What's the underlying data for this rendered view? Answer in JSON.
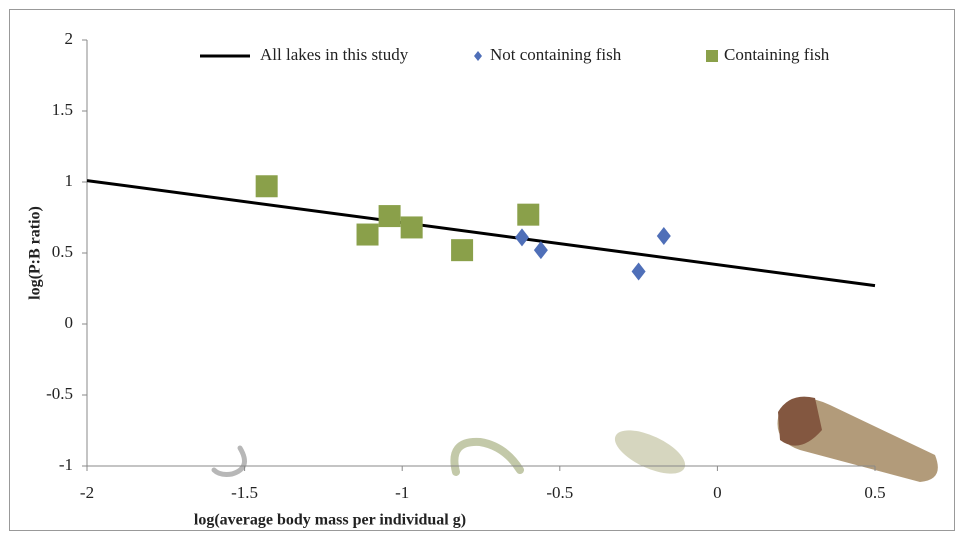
{
  "chart_data": {
    "type": "scatter",
    "xlabel": "log(average body mass per individual g)",
    "ylabel": "log(P:B ratio)",
    "xlim": [
      -2,
      0.5
    ],
    "ylim": [
      -1,
      2
    ],
    "xticks": [
      -2,
      -1.5,
      -1,
      -0.5,
      0,
      0.5
    ],
    "yticks": [
      -1,
      -0.5,
      0,
      0.5,
      1,
      1.5,
      2
    ],
    "legend": "top",
    "series": [
      {
        "name": "All lakes in this study",
        "color": "#000000",
        "mode": "line",
        "x": [
          -2,
          0.5
        ],
        "values": [
          1.01,
          0.27
        ]
      },
      {
        "name": "Not containing fish",
        "color": "#4f6fb8",
        "mode": "marker",
        "marker": "diamond",
        "x": [
          -0.62,
          -0.56,
          -0.25,
          -0.17
        ],
        "values": [
          0.61,
          0.52,
          0.37,
          0.62
        ]
      },
      {
        "name": "Containing fish",
        "color": "#8aa04a",
        "mode": "marker",
        "marker": "square",
        "x": [
          -1.43,
          -1.11,
          -1.04,
          -0.97,
          -0.81,
          -0.6
        ],
        "values": [
          0.97,
          0.63,
          0.76,
          0.68,
          0.52,
          0.77
        ]
      }
    ]
  }
}
